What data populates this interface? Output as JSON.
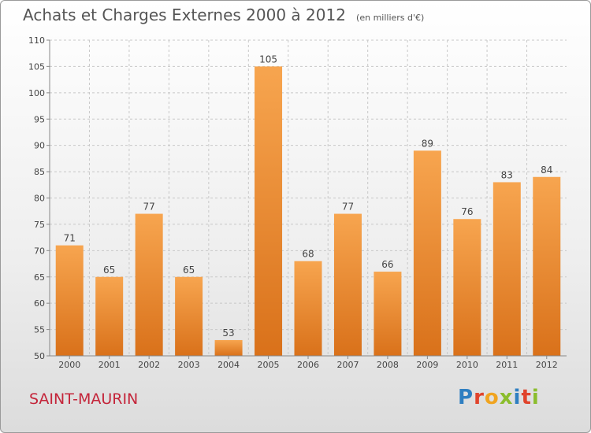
{
  "header": {
    "title": "Achats et Charges Externes 2000 à 2012",
    "unit": "(en milliers d'€)"
  },
  "footer": {
    "commune": "SAINT-MAURIN",
    "brand": "Proxiti"
  },
  "colors": {
    "bar_top": "#f7a54f",
    "bar_bottom": "#d9711a",
    "commune_text": "#c4253a",
    "brand_letters": [
      "#2f7fc1",
      "#e0442c",
      "#f0a420",
      "#8bbd2d",
      "#2f7fc1",
      "#e0442c",
      "#8bbd2d"
    ]
  },
  "chart_data": {
    "type": "bar",
    "categories": [
      "2000",
      "2001",
      "2002",
      "2003",
      "2004",
      "2005",
      "2006",
      "2007",
      "2008",
      "2009",
      "2010",
      "2011",
      "2012"
    ],
    "values": [
      71,
      65,
      77,
      65,
      53,
      105,
      68,
      77,
      66,
      89,
      76,
      83,
      84
    ],
    "title": "Achats et Charges Externes 2000 à 2012",
    "xlabel": "",
    "ylabel": "",
    "ylim": [
      50,
      110
    ],
    "yticks": [
      50,
      55,
      60,
      65,
      70,
      75,
      80,
      85,
      90,
      95,
      100,
      105,
      110
    ],
    "grid": true,
    "data_labels": true
  }
}
